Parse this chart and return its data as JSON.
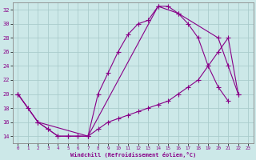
{
  "bg_color": "#cce8e8",
  "grid_color": "#aacccc",
  "line_color": "#880088",
  "xlabel": "Windchill (Refroidissement éolien,°C)",
  "xlim": [
    -0.5,
    23.5
  ],
  "ylim": [
    13,
    33
  ],
  "yticks": [
    14,
    16,
    18,
    20,
    22,
    24,
    26,
    28,
    30,
    32
  ],
  "xticks": [
    0,
    1,
    2,
    3,
    4,
    5,
    6,
    7,
    8,
    9,
    10,
    11,
    12,
    13,
    14,
    15,
    16,
    17,
    18,
    19,
    20,
    21,
    22,
    23
  ],
  "curve1_x": [
    0,
    1,
    2,
    3,
    4,
    5,
    6,
    7,
    8,
    9,
    10,
    11,
    12,
    13,
    14,
    15,
    16,
    17,
    18,
    19,
    20,
    21
  ],
  "curve1_y": [
    20,
    18,
    16,
    15,
    14,
    14,
    14,
    14,
    20,
    23,
    26,
    28.5,
    30,
    30.5,
    32.5,
    32.5,
    31.5,
    30,
    28,
    24,
    21,
    19
  ],
  "curve2_x": [
    0,
    2,
    3,
    4,
    5,
    6,
    7,
    8,
    9,
    10,
    11,
    12,
    13,
    14,
    15,
    16,
    17,
    18,
    19,
    20,
    21,
    22
  ],
  "curve2_y": [
    20,
    16,
    15,
    14,
    14,
    14,
    14,
    15,
    16,
    16.5,
    17,
    17.5,
    18,
    18.5,
    19,
    20,
    21,
    22,
    24,
    26,
    28,
    20
  ],
  "curve3_x": [
    0,
    2,
    7,
    14,
    16,
    20,
    21,
    22
  ],
  "curve3_y": [
    20,
    16,
    14,
    32.5,
    31.5,
    28,
    24,
    20
  ]
}
